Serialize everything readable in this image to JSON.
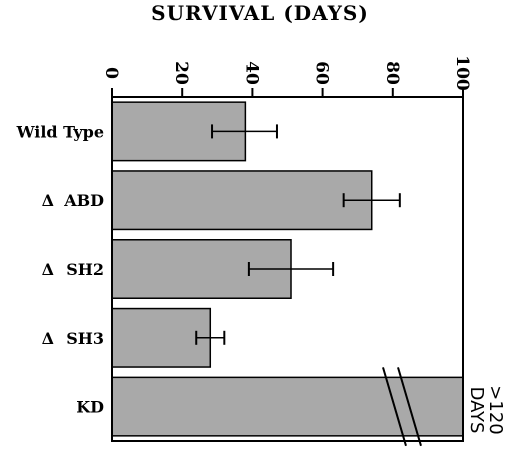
{
  "chart_data": {
    "type": "bar",
    "orientation": "horizontal",
    "title": "SURVIVAL  (DAYS)",
    "xlabel": "",
    "ylabel": "",
    "xlim": [
      0,
      100
    ],
    "xticks": [
      "0",
      "20",
      "40",
      "60",
      "80",
      "100"
    ],
    "tick_label_rotation": 90,
    "bar_color": "#a9a9a9",
    "categories": [
      {
        "prefix": "",
        "name": "Wild Type"
      },
      {
        "prefix": "Δ",
        "name": "ABD"
      },
      {
        "prefix": "Δ",
        "name": "SH2"
      },
      {
        "prefix": "Δ",
        "name": "SH3"
      },
      {
        "prefix": "",
        "name": "KD"
      }
    ],
    "values": [
      38,
      74,
      51,
      28,
      100
    ],
    "error_low": [
      28.5,
      66,
      39,
      24,
      null
    ],
    "error_high": [
      47,
      82,
      63,
      32,
      null
    ],
    "axis_break": true,
    "break_bar_index": 4,
    "annotation_line1": ">120",
    "annotation_line2": "DAYS"
  }
}
